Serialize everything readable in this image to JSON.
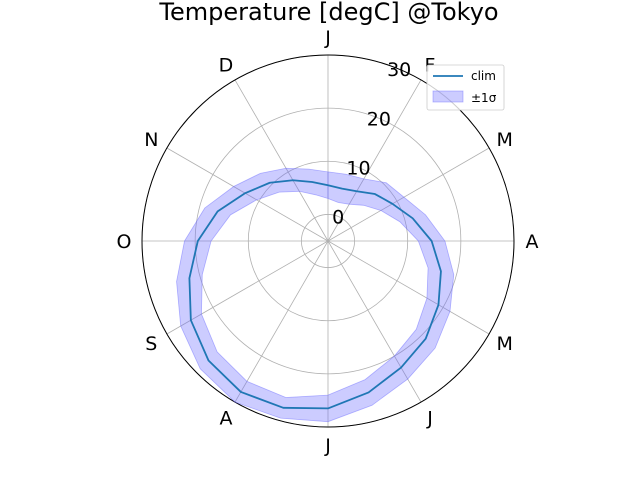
{
  "chart_data": {
    "type": "line",
    "projection": "polar",
    "title": "Temperature [degC] @Tokyo",
    "angular_axis": {
      "direction": "clockwise",
      "zero_at": "top",
      "tick_labels": [
        "J",
        "F",
        "M",
        "A",
        "M",
        "J",
        "J",
        "A",
        "S",
        "O",
        "N",
        "D"
      ]
    },
    "radial_axis": {
      "ticks": [
        0,
        10,
        20,
        30
      ],
      "tick_labels": [
        "0",
        "10",
        "20",
        "30"
      ],
      "range": [
        -5,
        30
      ]
    },
    "grid": true,
    "legend": {
      "placement": "top-right",
      "entries": [
        "clim",
        "±1σ"
      ]
    },
    "month_starts": [
      "J",
      "F",
      "M",
      "A",
      "M",
      "J",
      "J",
      "A",
      "S",
      "O",
      "N",
      "D"
    ],
    "series": [
      {
        "name": "clim",
        "kind": "line",
        "color": "#1f77b4",
        "x_month_index": [
          0,
          0.5,
          1,
          1.5,
          2,
          2.5,
          3,
          3.5,
          4,
          4.5,
          5,
          5.5,
          6,
          6.5,
          7,
          7.5,
          8,
          8.5,
          9,
          9.5,
          10,
          10.5,
          11,
          11.5,
          12
        ],
        "values": [
          5.5,
          5.2,
          5.8,
          7.5,
          9.0,
          11.5,
          14.5,
          17.0,
          19.0,
          21.0,
          22.5,
          24.5,
          26.5,
          27.5,
          27.8,
          26.8,
          24.8,
          22.0,
          19.5,
          16.5,
          13.0,
          10.5,
          8.2,
          6.5,
          5.5
        ]
      },
      {
        "name": "±1σ",
        "kind": "band",
        "color": "#6e6eff",
        "x_month_index": [
          0,
          0.5,
          1,
          1.5,
          2,
          2.5,
          3,
          3.5,
          4,
          4.5,
          5,
          5.5,
          6,
          6.5,
          7,
          7.5,
          8,
          8.5,
          9,
          9.5,
          10,
          10.5,
          11,
          11.5,
          12
        ],
        "lower": [
          3.0,
          2.5,
          3.0,
          4.5,
          6.5,
          9.0,
          12.0,
          14.5,
          16.5,
          18.5,
          20.0,
          22.0,
          24.0,
          25.5,
          25.5,
          24.5,
          22.5,
          19.5,
          17.0,
          14.0,
          10.5,
          8.0,
          5.8,
          4.0,
          3.0
        ],
        "upper": [
          8.0,
          8.0,
          8.5,
          10.5,
          11.5,
          14.0,
          17.0,
          19.5,
          21.5,
          23.5,
          25.0,
          27.0,
          29.0,
          29.5,
          30.0,
          29.0,
          27.0,
          24.5,
          22.0,
          19.0,
          15.5,
          13.0,
          10.8,
          9.0,
          8.0
        ]
      }
    ]
  }
}
